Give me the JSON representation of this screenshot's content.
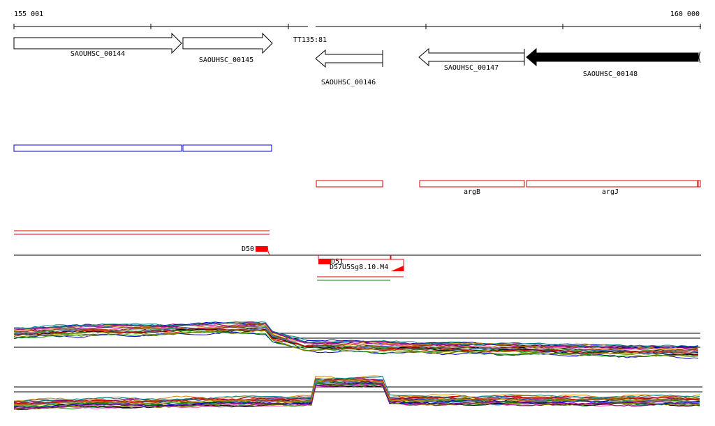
{
  "axis": {
    "start_label": "155 001",
    "end_label": "160 000",
    "start": 155001,
    "end": 160000
  },
  "terminator": {
    "label": "TT135:81"
  },
  "genes": [
    {
      "id": "SAOUHSC_00144",
      "label": "SAOUHSC_00144",
      "strand": "+",
      "filled": false
    },
    {
      "id": "SAOUHSC_00145",
      "label": "SAOUHSC_00145",
      "strand": "+",
      "filled": false
    },
    {
      "id": "SAOUHSC_00146",
      "label": "SAOUHSC_00146",
      "strand": "-",
      "filled": false
    },
    {
      "id": "SAOUHSC_00147",
      "label": "SAOUHSC_00147",
      "strand": "-",
      "filled": false
    },
    {
      "id": "SAOUHSC_00148",
      "label": "SAOUHSC_00148",
      "strand": "-",
      "filled": true
    }
  ],
  "operons": {
    "blue_color": "#0000cc",
    "red_color": "#dd0000",
    "red_labels": [
      "argB",
      "argJ"
    ]
  },
  "features": {
    "d50": {
      "label": "D50"
    },
    "d51": {
      "label": "D51"
    },
    "d57": {
      "label": "D57"
    },
    "overlap_label": "U5Sg8.10.M4",
    "tss_color": "#ff0000"
  },
  "expression": {
    "series_colors": [
      "#000000",
      "#cc0000",
      "#008800",
      "#0000cc",
      "#cc8800",
      "#888800",
      "#880088",
      "#008888",
      "#ff66aa",
      "#666666",
      "#aa4400",
      "#44aa44",
      "#aa0088",
      "#4466cc"
    ]
  }
}
